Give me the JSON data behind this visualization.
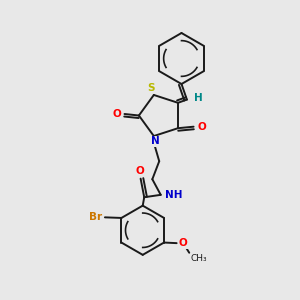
{
  "bg": "#e8e8e8",
  "bond_color": "#1a1a1a",
  "lw": 1.4,
  "S_color": "#b8b800",
  "O_color": "#ff0000",
  "N_color": "#0000cc",
  "Br_color": "#cc7700",
  "H_color": "#008888",
  "xlim": [
    0,
    10
  ],
  "ylim": [
    0,
    10
  ]
}
